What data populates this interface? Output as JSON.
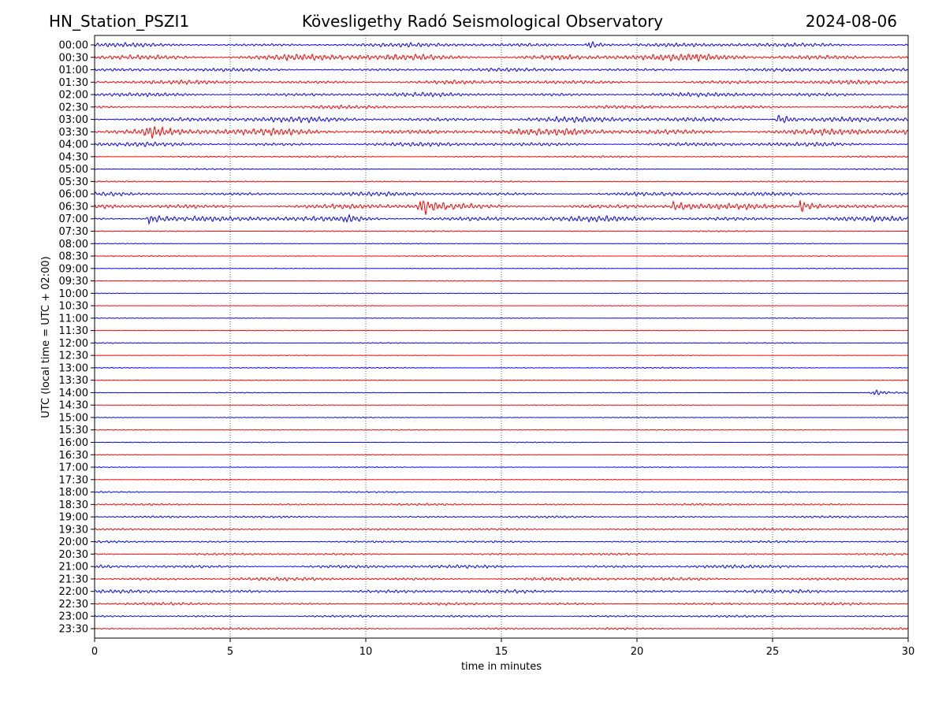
{
  "header": {
    "station": "HN_Station_PSZI1",
    "observatory": "Kövesligethy Radó Seismological Observatory",
    "date": "2024-08-06"
  },
  "chart_data": {
    "type": "line",
    "title": "Kövesligethy Radó Seismological Observatory",
    "xlabel": "time in minutes",
    "ylabel": "UTC (local time = UTC + 02:00)",
    "xlim": [
      0,
      30
    ],
    "xticks": [
      0,
      5,
      10,
      15,
      20,
      25,
      30
    ],
    "grid": "vertical dotted at x ticks",
    "colors": [
      "#0000ff",
      "#ff0000"
    ],
    "rows": [
      {
        "label": "00:00",
        "amp": 3
      },
      {
        "label": "00:30",
        "amp": 5
      },
      {
        "label": "01:00",
        "amp": 2.5
      },
      {
        "label": "01:30",
        "amp": 3
      },
      {
        "label": "02:00",
        "amp": 3
      },
      {
        "label": "02:30",
        "amp": 2.5
      },
      {
        "label": "03:00",
        "amp": 4
      },
      {
        "label": "03:30",
        "amp": 5
      },
      {
        "label": "04:00",
        "amp": 3
      },
      {
        "label": "04:30",
        "amp": 1.3
      },
      {
        "label": "05:00",
        "amp": 1
      },
      {
        "label": "05:30",
        "amp": 1
      },
      {
        "label": "06:00",
        "amp": 3
      },
      {
        "label": "06:30",
        "amp": 4
      },
      {
        "label": "07:00",
        "amp": 4
      },
      {
        "label": "07:30",
        "amp": 0.9
      },
      {
        "label": "08:00",
        "amp": 0.6
      },
      {
        "label": "08:30",
        "amp": 0.7
      },
      {
        "label": "09:00",
        "amp": 0.6
      },
      {
        "label": "09:30",
        "amp": 0.6
      },
      {
        "label": "10:00",
        "amp": 0.5
      },
      {
        "label": "10:30",
        "amp": 0.5
      },
      {
        "label": "11:00",
        "amp": 0.5
      },
      {
        "label": "11:30",
        "amp": 0.5
      },
      {
        "label": "12:00",
        "amp": 0.7
      },
      {
        "label": "12:30",
        "amp": 0.5
      },
      {
        "label": "13:00",
        "amp": 0.8
      },
      {
        "label": "13:30",
        "amp": 0.5
      },
      {
        "label": "14:00",
        "amp": 0.6
      },
      {
        "label": "14:30",
        "amp": 0.5
      },
      {
        "label": "15:00",
        "amp": 0.6
      },
      {
        "label": "15:30",
        "amp": 0.6
      },
      {
        "label": "16:00",
        "amp": 0.6
      },
      {
        "label": "16:30",
        "amp": 0.6
      },
      {
        "label": "17:00",
        "amp": 0.6
      },
      {
        "label": "17:30",
        "amp": 0.6
      },
      {
        "label": "18:00",
        "amp": 1
      },
      {
        "label": "18:30",
        "amp": 1.5
      },
      {
        "label": "19:00",
        "amp": 1.5
      },
      {
        "label": "19:30",
        "amp": 1.5
      },
      {
        "label": "20:00",
        "amp": 1.5
      },
      {
        "label": "20:30",
        "amp": 1.5
      },
      {
        "label": "21:00",
        "amp": 2.5
      },
      {
        "label": "21:30",
        "amp": 2.5
      },
      {
        "label": "22:00",
        "amp": 2.5
      },
      {
        "label": "22:30",
        "amp": 2
      },
      {
        "label": "23:00",
        "amp": 1.6
      },
      {
        "label": "23:30",
        "amp": 1.5
      }
    ],
    "events": [
      {
        "row": "03:30",
        "minute": 1.9,
        "amp": 8
      },
      {
        "row": "06:30",
        "minute": 12.0,
        "amp": 12
      },
      {
        "row": "06:30",
        "minute": 26.0,
        "amp": 8
      },
      {
        "row": "06:30",
        "minute": 21.3,
        "amp": 6
      },
      {
        "row": "07:00",
        "minute": 2.0,
        "amp": 6
      },
      {
        "row": "07:00",
        "minute": 9.2,
        "amp": 5
      },
      {
        "row": "00:00",
        "minute": 18.2,
        "amp": 6
      },
      {
        "row": "03:00",
        "minute": 25.2,
        "amp": 7
      },
      {
        "row": "14:00",
        "minute": 28.7,
        "amp": 4
      }
    ]
  }
}
